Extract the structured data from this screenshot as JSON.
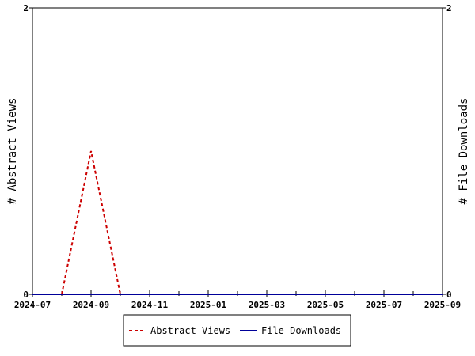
{
  "chart_data": {
    "type": "line",
    "x": [
      "2024-07",
      "2024-08",
      "2024-09",
      "2024-10",
      "2024-11",
      "2024-12",
      "2025-01",
      "2025-02",
      "2025-03",
      "2025-04",
      "2025-05",
      "2025-06",
      "2025-07",
      "2025-08",
      "2025-09"
    ],
    "x_tick_labels": [
      "2024-07",
      "2024-09",
      "2024-11",
      "2025-01",
      "2025-03",
      "2025-05",
      "2025-07",
      "2025-09"
    ],
    "series": [
      {
        "name": "Abstract Views",
        "axis": "left",
        "color": "#cc0000",
        "dash": "dashed",
        "values": [
          null,
          0,
          1,
          0,
          null,
          null,
          null,
          null,
          null,
          null,
          null,
          null,
          null,
          null,
          null
        ]
      },
      {
        "name": "File Downloads",
        "axis": "right",
        "color": "#000099",
        "dash": "solid",
        "values": [
          0,
          0,
          0,
          0,
          0,
          0,
          0,
          0,
          0,
          0,
          0,
          0,
          0,
          0,
          0
        ]
      }
    ],
    "ylabel_left": "# Abstract Views",
    "ylabel_right": "# File Downloads",
    "ylim_left": [
      0,
      2
    ],
    "ylim_right": [
      0,
      2
    ],
    "y_tick_labels_left": [
      "0",
      "2"
    ],
    "y_tick_labels_right": [
      "0",
      "2"
    ],
    "grid": false,
    "legend_position": "bottom-center"
  }
}
